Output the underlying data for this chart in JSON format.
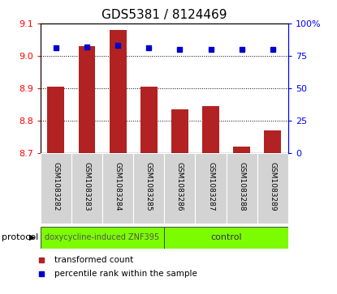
{
  "title": "GDS5381 / 8124469",
  "samples": [
    "GSM1083282",
    "GSM1083283",
    "GSM1083284",
    "GSM1083285",
    "GSM1083286",
    "GSM1083287",
    "GSM1083288",
    "GSM1083289"
  ],
  "bar_values": [
    8.905,
    9.03,
    9.08,
    8.905,
    8.835,
    8.845,
    8.72,
    8.77
  ],
  "bar_base": 8.7,
  "percentile_values": [
    81,
    82,
    83,
    81,
    80,
    80,
    80,
    80
  ],
  "ylim_left": [
    8.7,
    9.1
  ],
  "ylim_right": [
    0,
    100
  ],
  "yticks_left": [
    8.7,
    8.8,
    8.9,
    9.0,
    9.1
  ],
  "yticks_right": [
    0,
    25,
    50,
    75,
    100
  ],
  "bar_color": "#b22222",
  "dot_color": "#0000cc",
  "group1_label": "doxycycline-induced ZNF395",
  "group2_label": "control",
  "group_color": "#7cfc00",
  "protocol_label": "protocol",
  "sample_bg_color": "#d3d3d3",
  "legend_bar_label": "transformed count",
  "legend_dot_label": "percentile rank within the sample",
  "title_fontsize": 11,
  "tick_fontsize": 8,
  "sample_fontsize": 6.5,
  "proto_fontsize": 7,
  "legend_fontsize": 7.5
}
